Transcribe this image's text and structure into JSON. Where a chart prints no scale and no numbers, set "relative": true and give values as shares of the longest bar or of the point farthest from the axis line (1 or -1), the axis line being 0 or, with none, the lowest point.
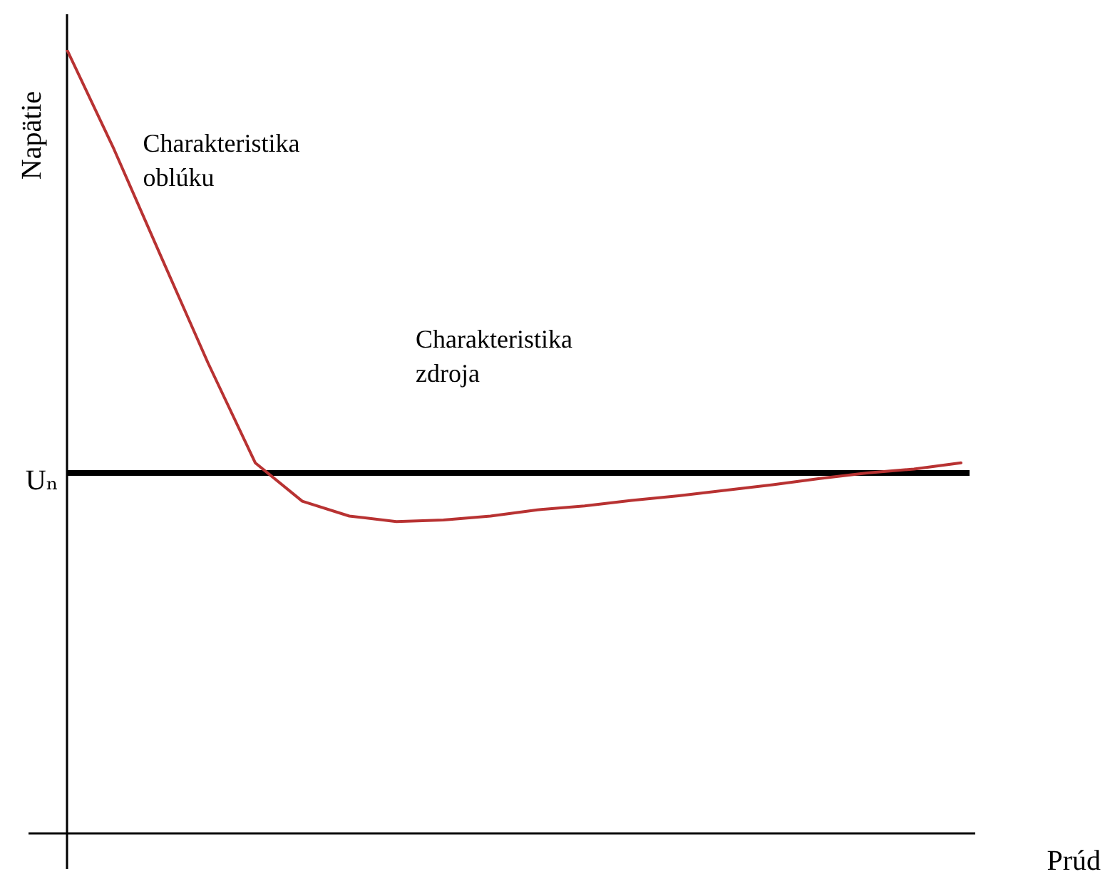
{
  "chart_data": {
    "type": "line",
    "relative": true,
    "xlabel": "Prúd",
    "ylabel": "Napätie",
    "categories": [
      null,
      null,
      null,
      null,
      null,
      null,
      null,
      null,
      null,
      null,
      null,
      null,
      null,
      null,
      null,
      null,
      null,
      null,
      null,
      null
    ],
    "series": [
      {
        "color": "#b83232",
        "values": [
          1.0,
          0.873,
          0.736,
          0.6,
          0.473,
          0.424,
          0.405,
          0.398,
          0.4,
          0.405,
          0.413,
          0.418,
          0.425,
          0.431,
          0.438,
          0.445,
          0.453,
          0.46,
          0.465,
          0.473
        ]
      }
    ],
    "ref_lines": [
      {
        "axis": "y",
        "value": 0.46,
        "label": "Uₙ",
        "color": "#000000"
      }
    ],
    "annotations": [
      "Charakteristika oblúku",
      "Charakteristika zdroja"
    ],
    "legend": false,
    "marker": "none",
    "line_style": "solid"
  }
}
